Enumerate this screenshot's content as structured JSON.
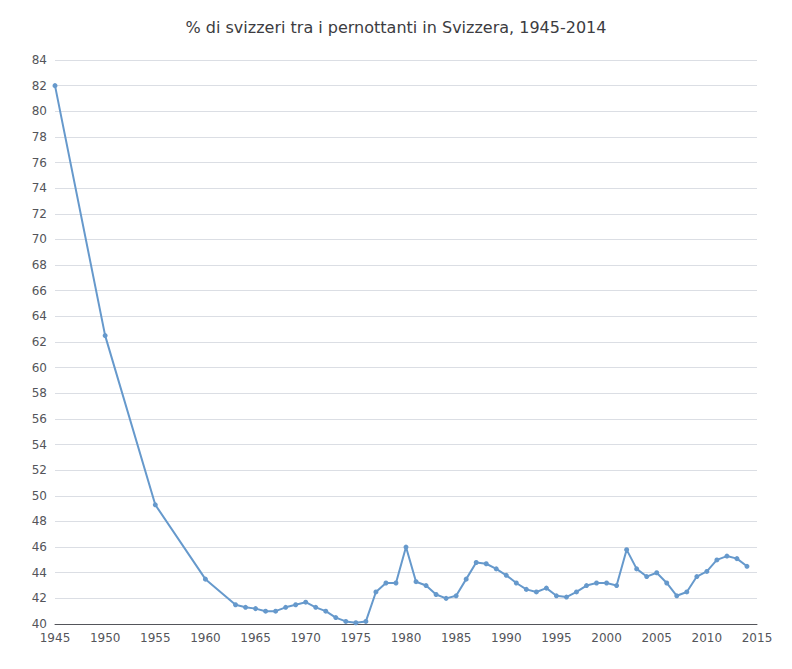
{
  "chart_data": {
    "type": "line",
    "title": "% di svizzeri tra i pernottanti in Svizzera, 1945-2014",
    "x": [
      1945,
      1950,
      1955,
      1960,
      1963,
      1964,
      1965,
      1966,
      1967,
      1968,
      1969,
      1970,
      1971,
      1972,
      1973,
      1974,
      1975,
      1976,
      1977,
      1978,
      1979,
      1980,
      1981,
      1982,
      1983,
      1984,
      1985,
      1986,
      1987,
      1988,
      1989,
      1990,
      1991,
      1992,
      1993,
      1994,
      1995,
      1996,
      1997,
      1998,
      1999,
      2000,
      2001,
      2002,
      2003,
      2004,
      2005,
      2006,
      2007,
      2008,
      2009,
      2010,
      2011,
      2012,
      2013,
      2014
    ],
    "values": [
      82.0,
      62.5,
      49.3,
      43.5,
      41.5,
      41.3,
      41.2,
      41.0,
      41.0,
      41.3,
      41.5,
      41.7,
      41.3,
      41.0,
      40.5,
      40.2,
      40.1,
      40.2,
      42.5,
      43.2,
      43.2,
      46.0,
      43.3,
      43.0,
      42.3,
      42.0,
      42.2,
      43.5,
      44.8,
      44.7,
      44.3,
      43.8,
      43.2,
      42.7,
      42.5,
      42.8,
      42.2,
      42.1,
      42.5,
      43.0,
      43.2,
      43.2,
      43.0,
      45.8,
      44.3,
      43.7,
      44.0,
      43.2,
      42.2,
      42.5,
      43.7,
      44.1,
      45.0,
      45.3,
      45.1,
      44.5
    ],
    "color": "#6699cc",
    "marker": "circle",
    "xlim": [
      1945,
      2015
    ],
    "ylim": [
      40,
      84
    ],
    "xticks": [
      1945,
      1950,
      1955,
      1960,
      1965,
      1970,
      1975,
      1980,
      1985,
      1990,
      1995,
      2000,
      2005,
      2010,
      2015
    ],
    "yticks": [
      40,
      42,
      44,
      46,
      48,
      50,
      52,
      54,
      56,
      58,
      60,
      62,
      64,
      66,
      68,
      70,
      72,
      74,
      76,
      78,
      80,
      82,
      84
    ],
    "grid": true
  }
}
